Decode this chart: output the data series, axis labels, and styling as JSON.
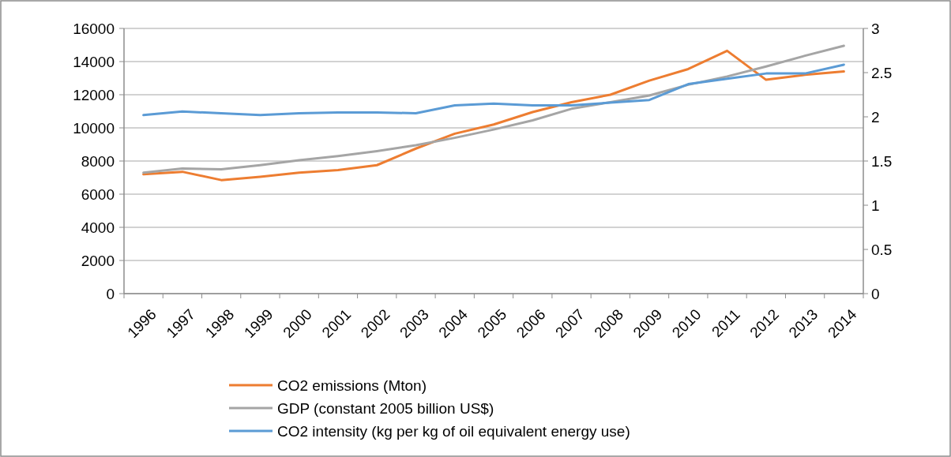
{
  "chart_data": {
    "type": "line",
    "categories": [
      "1996",
      "1997",
      "1998",
      "1999",
      "2000",
      "2001",
      "2002",
      "2003",
      "2004",
      "2005",
      "2006",
      "2007",
      "2008",
      "2009",
      "2010",
      "2011",
      "2012",
      "2013",
      "2014"
    ],
    "series": [
      {
        "name": "CO2 emissions (Mton)",
        "color": "#ed7d31",
        "values": [
          7200,
          7350,
          6850,
          7050,
          7300,
          7450,
          7750,
          8750,
          9650,
          10200,
          10950,
          11550,
          12000,
          12850,
          13550,
          14650,
          12900,
          13200,
          13400
        ]
      },
      {
        "name": "GDP (constant 2005 billion US$)",
        "color": "#a5a5a5",
        "values": [
          7300,
          7550,
          7500,
          7750,
          8050,
          8300,
          8600,
          8950,
          9400,
          9900,
          10450,
          11150,
          11550,
          11950,
          12600,
          13100,
          13700,
          14350,
          14950
        ]
      },
      {
        "name": "CO2 intensity (kg per kg of oil equivalent energy use)",
        "color": "#5b9bd5",
        "axis": "y2",
        "values": [
          2.02,
          2.06,
          2.04,
          2.02,
          2.04,
          2.05,
          2.05,
          2.04,
          2.13,
          2.15,
          2.13,
          2.13,
          2.16,
          2.19,
          2.37,
          2.43,
          2.49,
          2.49,
          2.59
        ]
      }
    ],
    "ylim": [
      0,
      16000
    ],
    "yticks": [
      0,
      2000,
      4000,
      6000,
      8000,
      10000,
      12000,
      14000,
      16000
    ],
    "y2lim": [
      0,
      3
    ],
    "y2ticks": [
      0,
      0.5,
      1,
      1.5,
      2,
      2.5,
      3
    ],
    "grid": "y",
    "legend": "bottom",
    "marker": "none",
    "line_style": "solid"
  }
}
